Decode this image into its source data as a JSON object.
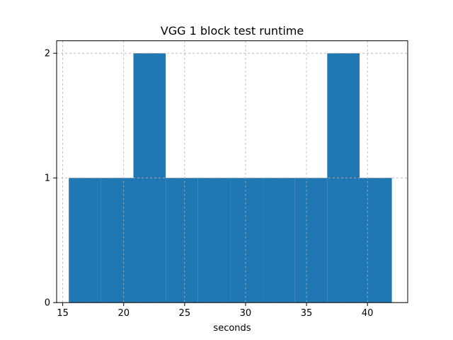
{
  "chart_data": {
    "type": "bar",
    "title": "VGG 1 block test runtime",
    "xlabel": "seconds",
    "ylabel": "",
    "xlim": [
      14.5,
      43.3
    ],
    "ylim": [
      0,
      2.1
    ],
    "x_ticks": [
      15,
      20,
      25,
      30,
      35,
      40
    ],
    "y_ticks": [
      0,
      1,
      2
    ],
    "grid": true,
    "grid_style": "dashed",
    "bar_color": "#1f77b4",
    "bins": [
      {
        "start": 15.5,
        "end": 18.15,
        "count": 1
      },
      {
        "start": 18.15,
        "end": 20.8,
        "count": 1
      },
      {
        "start": 20.8,
        "end": 23.45,
        "count": 2
      },
      {
        "start": 23.45,
        "end": 26.1,
        "count": 1
      },
      {
        "start": 26.1,
        "end": 28.75,
        "count": 1
      },
      {
        "start": 28.75,
        "end": 31.4,
        "count": 1
      },
      {
        "start": 31.4,
        "end": 34.05,
        "count": 1
      },
      {
        "start": 34.05,
        "end": 36.7,
        "count": 1
      },
      {
        "start": 36.7,
        "end": 39.35,
        "count": 2
      },
      {
        "start": 39.35,
        "end": 42.0,
        "count": 1
      }
    ]
  }
}
